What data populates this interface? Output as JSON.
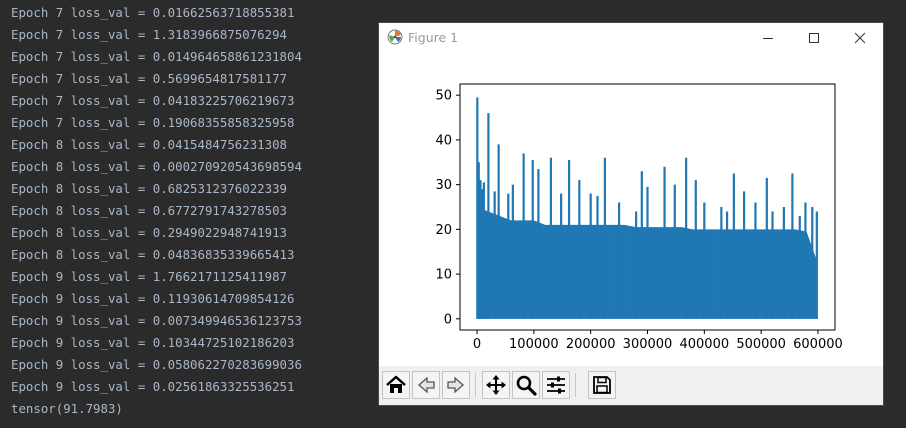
{
  "console": {
    "lines": [
      "Epoch 7 loss_val = 0.01662563718855381",
      "Epoch 7 loss_val = 1.3183966875076294",
      "Epoch 7 loss_val = 0.014964658861231804",
      "Epoch 7 loss_val = 0.5699654817581177",
      "Epoch 7 loss_val = 0.04183225706219673",
      "Epoch 7 loss_val = 0.19068355858325958",
      "Epoch 8 loss_val = 0.0415484756231308",
      "Epoch 8 loss_val = 0.000270920543698594",
      "Epoch 8 loss_val = 0.6825312376022339",
      "Epoch 8 loss_val = 0.6772791743278503",
      "Epoch 8 loss_val = 0.2949022948741913",
      "Epoch 8 loss_val = 0.04836835339665413",
      "Epoch 9 loss_val = 1.7662171125411987",
      "Epoch 9 loss_val = 0.11930614709854126",
      "Epoch 9 loss_val = 0.007349946536123753",
      "Epoch 9 loss_val = 0.10344725102186203",
      "Epoch 9 loss_val = 0.058062270283699036",
      "Epoch 9 loss_val = 0.02561863325536251",
      "tensor(91.7983)"
    ]
  },
  "window": {
    "title": "Figure 1",
    "minimize_icon": "minimize-icon",
    "maximize_icon": "maximize-icon",
    "close_icon": "close-icon"
  },
  "toolbar": {
    "buttons": [
      "home-icon",
      "back-icon",
      "forward-icon",
      "pan-icon",
      "zoom-icon",
      "configure-subplots-icon",
      "save-icon"
    ]
  },
  "chart_data": {
    "type": "line",
    "xlim": [
      0,
      600000
    ],
    "ylim": [
      0,
      50
    ],
    "x_ticks": [
      0,
      100000,
      200000,
      300000,
      400000,
      500000,
      600000
    ],
    "x_tick_labels": [
      "0",
      "100000",
      "200000",
      "300000",
      "400000",
      "500000",
      "600000"
    ],
    "y_ticks": [
      0,
      10,
      20,
      30,
      40,
      50
    ],
    "y_tick_labels": [
      "0",
      "10",
      "20",
      "30",
      "40",
      "50"
    ],
    "grid": false,
    "series": [
      {
        "color": "#1f77b4",
        "envelope_x": [
          0,
          20000,
          40000,
          60000,
          80000,
          100000,
          120000,
          140000,
          160000,
          180000,
          200000,
          220000,
          240000,
          260000,
          280000,
          300000,
          320000,
          340000,
          360000,
          380000,
          400000,
          420000,
          440000,
          460000,
          480000,
          500000,
          520000,
          540000,
          560000,
          580000,
          598000
        ],
        "envelope_y": [
          25,
          24,
          23,
          22,
          22,
          22,
          21,
          21,
          21,
          21,
          21,
          21,
          21,
          21,
          20.5,
          20.5,
          20.5,
          20.5,
          20.5,
          20,
          20,
          20,
          20,
          20,
          20,
          20,
          20,
          20,
          20,
          19.5,
          13
        ],
        "spikes": [
          [
            500,
            49.5
          ],
          [
            3000,
            35
          ],
          [
            6000,
            31
          ],
          [
            9000,
            29
          ],
          [
            12000,
            30.5
          ],
          [
            20000,
            46
          ],
          [
            31000,
            28.5
          ],
          [
            38000,
            39
          ],
          [
            55000,
            28
          ],
          [
            63000,
            30
          ],
          [
            82000,
            37
          ],
          [
            98000,
            35.5
          ],
          [
            108000,
            33.5
          ],
          [
            130000,
            36
          ],
          [
            148000,
            28
          ],
          [
            162000,
            35.5
          ],
          [
            180000,
            31
          ],
          [
            200000,
            28
          ],
          [
            212000,
            27.5
          ],
          [
            225000,
            36
          ],
          [
            250000,
            26
          ],
          [
            280000,
            24
          ],
          [
            290000,
            33
          ],
          [
            300000,
            29.5
          ],
          [
            330000,
            34
          ],
          [
            348000,
            30
          ],
          [
            368000,
            36
          ],
          [
            385000,
            31
          ],
          [
            400000,
            26
          ],
          [
            430000,
            25
          ],
          [
            440000,
            24
          ],
          [
            452000,
            32.5
          ],
          [
            470000,
            28.5
          ],
          [
            490000,
            26
          ],
          [
            510000,
            31.5
          ],
          [
            520000,
            24
          ],
          [
            540000,
            25
          ],
          [
            555000,
            32.5
          ],
          [
            568000,
            23
          ],
          [
            578000,
            26
          ],
          [
            590000,
            25
          ],
          [
            598000,
            24
          ]
        ]
      }
    ]
  }
}
